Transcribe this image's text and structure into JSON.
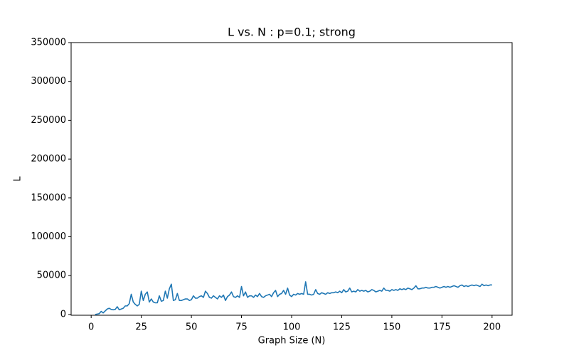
{
  "chart_data": {
    "type": "line",
    "title": "L vs. N : p=0.1; strong",
    "x_label": "Graph Size (N)",
    "y_label": "L",
    "x": [
      2,
      3,
      4,
      5,
      6,
      7,
      8,
      9,
      10,
      11,
      12,
      13,
      14,
      15,
      16,
      17,
      18,
      19,
      20,
      21,
      22,
      23,
      24,
      25,
      26,
      27,
      28,
      29,
      30,
      31,
      32,
      33,
      34,
      35,
      36,
      37,
      38,
      39,
      40,
      41,
      42,
      43,
      44,
      45,
      46,
      47,
      48,
      49,
      50,
      51,
      52,
      53,
      54,
      55,
      56,
      57,
      58,
      59,
      60,
      61,
      62,
      63,
      64,
      65,
      66,
      67,
      68,
      69,
      70,
      71,
      72,
      73,
      74,
      75,
      76,
      77,
      78,
      79,
      80,
      81,
      82,
      83,
      84,
      85,
      86,
      87,
      88,
      89,
      90,
      91,
      92,
      93,
      94,
      95,
      96,
      97,
      98,
      99,
      100,
      101,
      102,
      103,
      104,
      105,
      106,
      107,
      108,
      109,
      110,
      111,
      112,
      113,
      114,
      115,
      116,
      117,
      118,
      119,
      120,
      121,
      122,
      123,
      124,
      125,
      126,
      127,
      128,
      129,
      130,
      131,
      132,
      133,
      134,
      135,
      136,
      137,
      138,
      139,
      140,
      141,
      142,
      143,
      144,
      145,
      146,
      147,
      148,
      149,
      150,
      151,
      152,
      153,
      154,
      155,
      156,
      157,
      158,
      159,
      160,
      161,
      162,
      163,
      164,
      165,
      166,
      167,
      168,
      169,
      170,
      171,
      172,
      173,
      174,
      175,
      176,
      177,
      178,
      179,
      180,
      181,
      182,
      183,
      184,
      185,
      186,
      187,
      188,
      189,
      190,
      191,
      192,
      193,
      194,
      195,
      196,
      197,
      198,
      199,
      200
    ],
    "series": [
      {
        "name": "L",
        "color": "#1f77b4",
        "values": [
          0,
          500,
          1000,
          4000,
          2000,
          4500,
          7000,
          8000,
          6500,
          6000,
          6500,
          10000,
          6000,
          7000,
          8000,
          11000,
          11000,
          14000,
          26000,
          16000,
          13000,
          11000,
          13000,
          30000,
          18000,
          26000,
          29000,
          16000,
          20000,
          16000,
          15000,
          15000,
          24000,
          17000,
          18000,
          30000,
          21000,
          33000,
          39000,
          18000,
          19000,
          27000,
          18000,
          18000,
          19000,
          20000,
          20000,
          18000,
          19000,
          24000,
          21000,
          21000,
          23000,
          24000,
          22000,
          30000,
          27000,
          22000,
          21000,
          24000,
          22000,
          20000,
          24000,
          22000,
          25000,
          18000,
          23000,
          25000,
          29000,
          23000,
          22000,
          24000,
          22000,
          36000,
          24000,
          29000,
          22000,
          24000,
          24000,
          22000,
          25000,
          23000,
          27000,
          23000,
          22000,
          24000,
          25000,
          26000,
          23000,
          28000,
          31000,
          23000,
          26000,
          27000,
          31000,
          26000,
          34000,
          25000,
          23000,
          26000,
          25000,
          27000,
          26000,
          27000,
          26000,
          42000,
          26000,
          26000,
          25000,
          26000,
          32000,
          27000,
          26000,
          28000,
          27000,
          26000,
          28000,
          27000,
          28000,
          28000,
          29000,
          28000,
          30000,
          28000,
          32000,
          29000,
          30000,
          34000,
          29000,
          30000,
          29000,
          32000,
          30000,
          31000,
          30000,
          31000,
          29000,
          30000,
          32000,
          31000,
          29000,
          30000,
          31000,
          30000,
          34000,
          31000,
          31000,
          30000,
          32000,
          31000,
          32000,
          31000,
          33000,
          32000,
          33000,
          32000,
          34000,
          33000,
          32000,
          34000,
          37000,
          33000,
          33000,
          34000,
          34000,
          35000,
          34000,
          34000,
          35000,
          35000,
          36000,
          35000,
          34000,
          35000,
          36000,
          35000,
          36000,
          35000,
          36000,
          37000,
          36000,
          35000,
          37000,
          38000,
          36000,
          37000,
          36000,
          37000,
          38000,
          37000,
          38000,
          37000,
          36000,
          39000,
          37000,
          38000,
          37000,
          38000,
          38000
        ]
      }
    ],
    "xlim": [
      -10,
      210
    ],
    "ylim": [
      -1000,
      350000
    ],
    "xticks": [
      0,
      25,
      50,
      75,
      100,
      125,
      150,
      175,
      200
    ],
    "yticks": [
      0,
      50000,
      100000,
      150000,
      200000,
      250000,
      300000,
      350000
    ],
    "grid": false
  }
}
